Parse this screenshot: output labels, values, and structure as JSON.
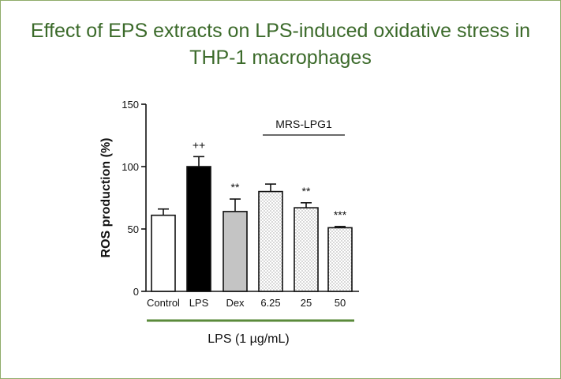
{
  "title_line1": "Effect of EPS extracts on LPS-induced oxidative stress in",
  "title_line2": "THP-1 macrophages",
  "group_label": "MRS-LPG1",
  "footer_label": "LPS (1 µg/mL)",
  "colors": {
    "title": "#3b6a2a",
    "frame": "#8fac6a",
    "footer_line": "#5a8a3a"
  },
  "chart_data": {
    "type": "bar",
    "ylabel": "ROS production (%)",
    "ylim": [
      0,
      150
    ],
    "yticks": [
      0,
      50,
      100,
      150
    ],
    "categories": [
      "Control",
      "LPS",
      "Dex",
      "6.25",
      "25",
      "50"
    ],
    "values": [
      61,
      100,
      64,
      80,
      67,
      51
    ],
    "errors": [
      5,
      8,
      10,
      6,
      4,
      1
    ],
    "annotations": [
      "",
      "++",
      "**",
      "",
      "**",
      "***"
    ],
    "fills": [
      "white",
      "black",
      "gray",
      "dotted",
      "dotted",
      "dotted"
    ]
  }
}
